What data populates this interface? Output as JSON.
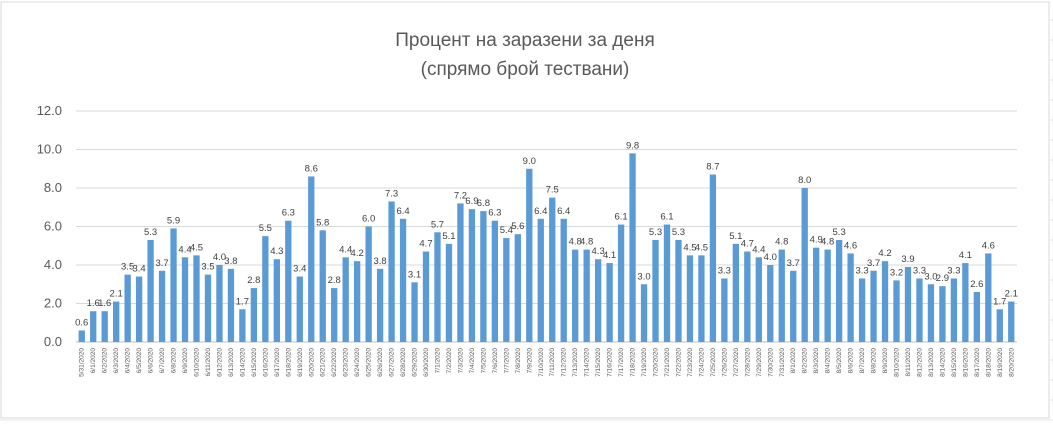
{
  "chart_data": {
    "type": "bar",
    "title": "Процент на заразени за деня",
    "subtitle": "(спрямо брой тествани)",
    "xlabel": "",
    "ylabel": "",
    "ylim": [
      0,
      12
    ],
    "yticks": [
      "0.0",
      "2.0",
      "4.0",
      "6.0",
      "8.0",
      "10.0",
      "12.0"
    ],
    "grid": true,
    "legend": "none",
    "bar_color": "#5b9bd5",
    "categories": [
      "5/31/2020",
      "6/1/2020",
      "6/2/2020",
      "6/3/2020",
      "6/4/2020",
      "6/5/2020",
      "6/6/2020",
      "6/7/2020",
      "6/8/2020",
      "6/9/2020",
      "6/10/2020",
      "6/11/2020",
      "6/12/2020",
      "6/13/2020",
      "6/14/2020",
      "6/15/2020",
      "6/16/2020",
      "6/17/2020",
      "6/18/2020",
      "6/19/2020",
      "6/20/2020",
      "6/21/2020",
      "6/22/2020",
      "6/23/2020",
      "6/24/2020",
      "6/25/2020",
      "6/26/2020",
      "6/27/2020",
      "6/28/2020",
      "6/29/2020",
      "6/30/2020",
      "7/1/2020",
      "7/2/2020",
      "7/3/2020",
      "7/4/2020",
      "7/5/2020",
      "7/6/2020",
      "7/7/2020",
      "7/8/2020",
      "7/9/2020",
      "7/10/2020",
      "7/11/2020",
      "7/12/2020",
      "7/13/2020",
      "7/14/2020",
      "7/15/2020",
      "7/16/2020",
      "7/17/2020",
      "7/18/2020",
      "7/19/2020",
      "7/20/2020",
      "7/21/2020",
      "7/22/2020",
      "7/23/2020",
      "7/24/2020",
      "7/25/2020",
      "7/26/2020",
      "7/27/2020",
      "7/28/2020",
      "7/29/2020",
      "7/30/2020",
      "7/31/2020",
      "8/1/2020",
      "8/2/2020",
      "8/3/2020",
      "8/4/2020",
      "8/5/2020",
      "8/6/2020",
      "8/7/2020",
      "8/8/2020",
      "8/9/2020",
      "8/10/2020",
      "8/11/2020",
      "8/12/2020",
      "8/13/2020",
      "8/14/2020",
      "8/15/2020",
      "8/16/2020",
      "8/17/2020",
      "8/18/2020",
      "8/19/2020",
      "8/20/2020"
    ],
    "values": [
      0.6,
      1.6,
      1.6,
      2.1,
      3.5,
      3.4,
      5.3,
      3.7,
      5.9,
      4.4,
      4.5,
      3.5,
      4.0,
      3.8,
      1.7,
      2.8,
      5.5,
      4.3,
      6.3,
      3.4,
      8.6,
      5.8,
      2.8,
      4.4,
      4.2,
      6.0,
      3.8,
      7.3,
      6.4,
      3.1,
      4.7,
      5.7,
      5.1,
      7.2,
      6.9,
      6.8,
      6.3,
      5.4,
      5.6,
      9.0,
      6.4,
      7.5,
      6.4,
      4.8,
      4.8,
      4.3,
      4.1,
      6.1,
      9.8,
      3.0,
      5.3,
      6.1,
      5.3,
      4.5,
      4.5,
      8.7,
      3.3,
      5.1,
      4.7,
      4.4,
      4.0,
      4.8,
      3.7,
      8.0,
      4.9,
      4.8,
      5.3,
      4.6,
      3.3,
      3.7,
      4.2,
      3.2,
      3.9,
      3.3,
      3.0,
      2.9,
      3.3,
      4.1,
      2.6,
      4.6,
      1.7,
      2.1
    ],
    "data_labels": [
      "0.6",
      "1.6",
      "1.6",
      "2.1",
      "3.5",
      "3.4",
      "5.3",
      "3.7",
      "5.9",
      "4.4",
      "4.5",
      "3.5",
      "4.0",
      "3.8",
      "1.7",
      "2.8",
      "5.5",
      "4.3",
      "6.3",
      "3.4",
      "8.6",
      "5.8",
      "2.8",
      "4.4",
      "4.2",
      "6.0",
      "3.8",
      "7.3",
      "6.4",
      "3.1",
      "4.7",
      "5.7",
      "5.1",
      "7.2",
      "6.9",
      "6.8",
      "6.3",
      "5.4",
      "5.6",
      "9.0",
      "6.4",
      "7.5",
      "6.4",
      "4.8",
      "4.8",
      "4.3",
      "4.1",
      "6.1",
      "9.8",
      "3.0",
      "5.3",
      "6.1",
      "5.3",
      "4.5",
      "4.5",
      "8.7",
      "3.3",
      "5.1",
      "4.7",
      "4.4",
      "4.0",
      "4.8",
      "3.7",
      "8.0",
      "4.9",
      "4.8",
      "5.3",
      "4.6",
      "3.3",
      "3.7",
      "4.2",
      "3.2",
      "3.9",
      "3.3",
      "3.0",
      "2.9",
      "3.3",
      "4.1",
      "2.6",
      "4.6",
      "1.7",
      "2.1"
    ]
  }
}
